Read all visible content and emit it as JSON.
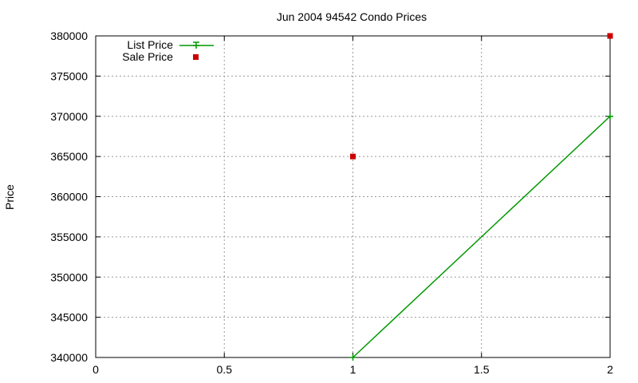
{
  "chart_data": {
    "type": "line",
    "title": "Jun 2004 94542 Condo Prices",
    "xlabel": "",
    "ylabel": "Price",
    "xlim": [
      0,
      2
    ],
    "ylim": [
      340000,
      380000
    ],
    "xticks": [
      0,
      0.5,
      1,
      1.5,
      2
    ],
    "xtick_labels": [
      "0",
      "0.5",
      "1",
      "1.5",
      "2"
    ],
    "yticks": [
      340000,
      345000,
      350000,
      355000,
      360000,
      365000,
      370000,
      375000,
      380000
    ],
    "ytick_labels": [
      "340000",
      "345000",
      "350000",
      "355000",
      "360000",
      "365000",
      "370000",
      "375000",
      "380000"
    ],
    "grid": true,
    "legend_position": "top-left",
    "series": [
      {
        "name": "List Price",
        "type": "line",
        "marker": "plus",
        "color": "#009900",
        "x": [
          1,
          2
        ],
        "y": [
          340000,
          370000
        ]
      },
      {
        "name": "Sale Price",
        "type": "scatter",
        "marker": "square",
        "color": "#cc0000",
        "x": [
          1,
          2
        ],
        "y": [
          365000,
          380000
        ]
      }
    ]
  }
}
